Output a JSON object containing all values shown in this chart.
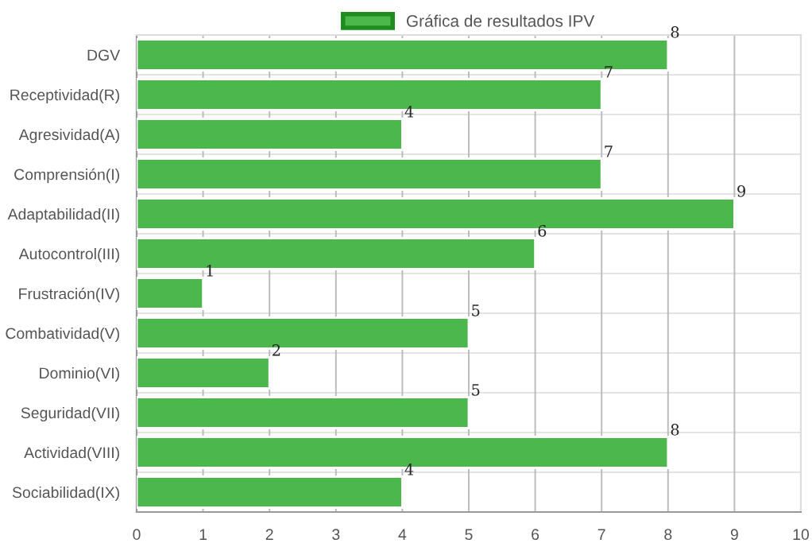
{
  "chart_data": {
    "type": "bar",
    "orientation": "horizontal",
    "categories": [
      "DGV",
      "Receptividad(R)",
      "Agresividad(A)",
      "Comprensión(I)",
      "Adaptabilidad(II)",
      "Autocontrol(III)",
      "Frustración(IV)",
      "Combatividad(V)",
      "Dominio(VI)",
      "Seguridad(VII)",
      "Actividad(VIII)",
      "Sociabilidad(IX)"
    ],
    "series": [
      {
        "name": "Gráfica de resultados IPV",
        "color": "#4cb74c",
        "values": [
          8,
          7,
          4,
          7,
          9,
          6,
          1,
          5,
          2,
          5,
          8,
          4
        ]
      }
    ],
    "xlim": [
      0,
      10
    ],
    "xticks": [
      0,
      1,
      2,
      3,
      4,
      5,
      6,
      7,
      8,
      9,
      10
    ],
    "grid": true,
    "legend": "top",
    "data_labels": true
  }
}
